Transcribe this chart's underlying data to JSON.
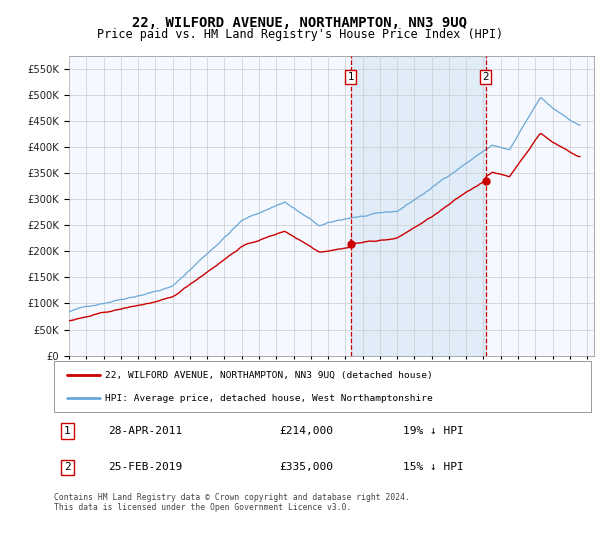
{
  "title": "22, WILFORD AVENUE, NORTHAMPTON, NN3 9UQ",
  "subtitle": "Price paid vs. HM Land Registry's House Price Index (HPI)",
  "title_fontsize": 10,
  "subtitle_fontsize": 8.5,
  "background_color": "#ffffff",
  "plot_bg_color": "#f5f8ff",
  "grid_color": "#cccccc",
  "ylim": [
    0,
    575000
  ],
  "yticks": [
    0,
    50000,
    100000,
    150000,
    200000,
    250000,
    300000,
    350000,
    400000,
    450000,
    500000,
    550000
  ],
  "xlim_start": 1995.0,
  "xlim_end": 2025.4,
  "hpi_color": "#6aa8d8",
  "price_color": "#cc0000",
  "vline_color": "#cc0000",
  "shade_color": "#d8e8f5",
  "sale1_year": 2011.32,
  "sale1_price": 214000,
  "sale2_year": 2019.12,
  "sale2_price": 335000,
  "legend_label1": "22, WILFORD AVENUE, NORTHAMPTON, NN3 9UQ (detached house)",
  "legend_label2": "HPI: Average price, detached house, West Northamptonshire",
  "annot1_label": "1",
  "annot1_date": "28-APR-2011",
  "annot1_price": "£214,000",
  "annot1_pct": "19% ↓ HPI",
  "annot2_label": "2",
  "annot2_date": "25-FEB-2019",
  "annot2_price": "£335,000",
  "annot2_pct": "15% ↓ HPI",
  "footer": "Contains HM Land Registry data © Crown copyright and database right 2024.\nThis data is licensed under the Open Government Licence v3.0."
}
